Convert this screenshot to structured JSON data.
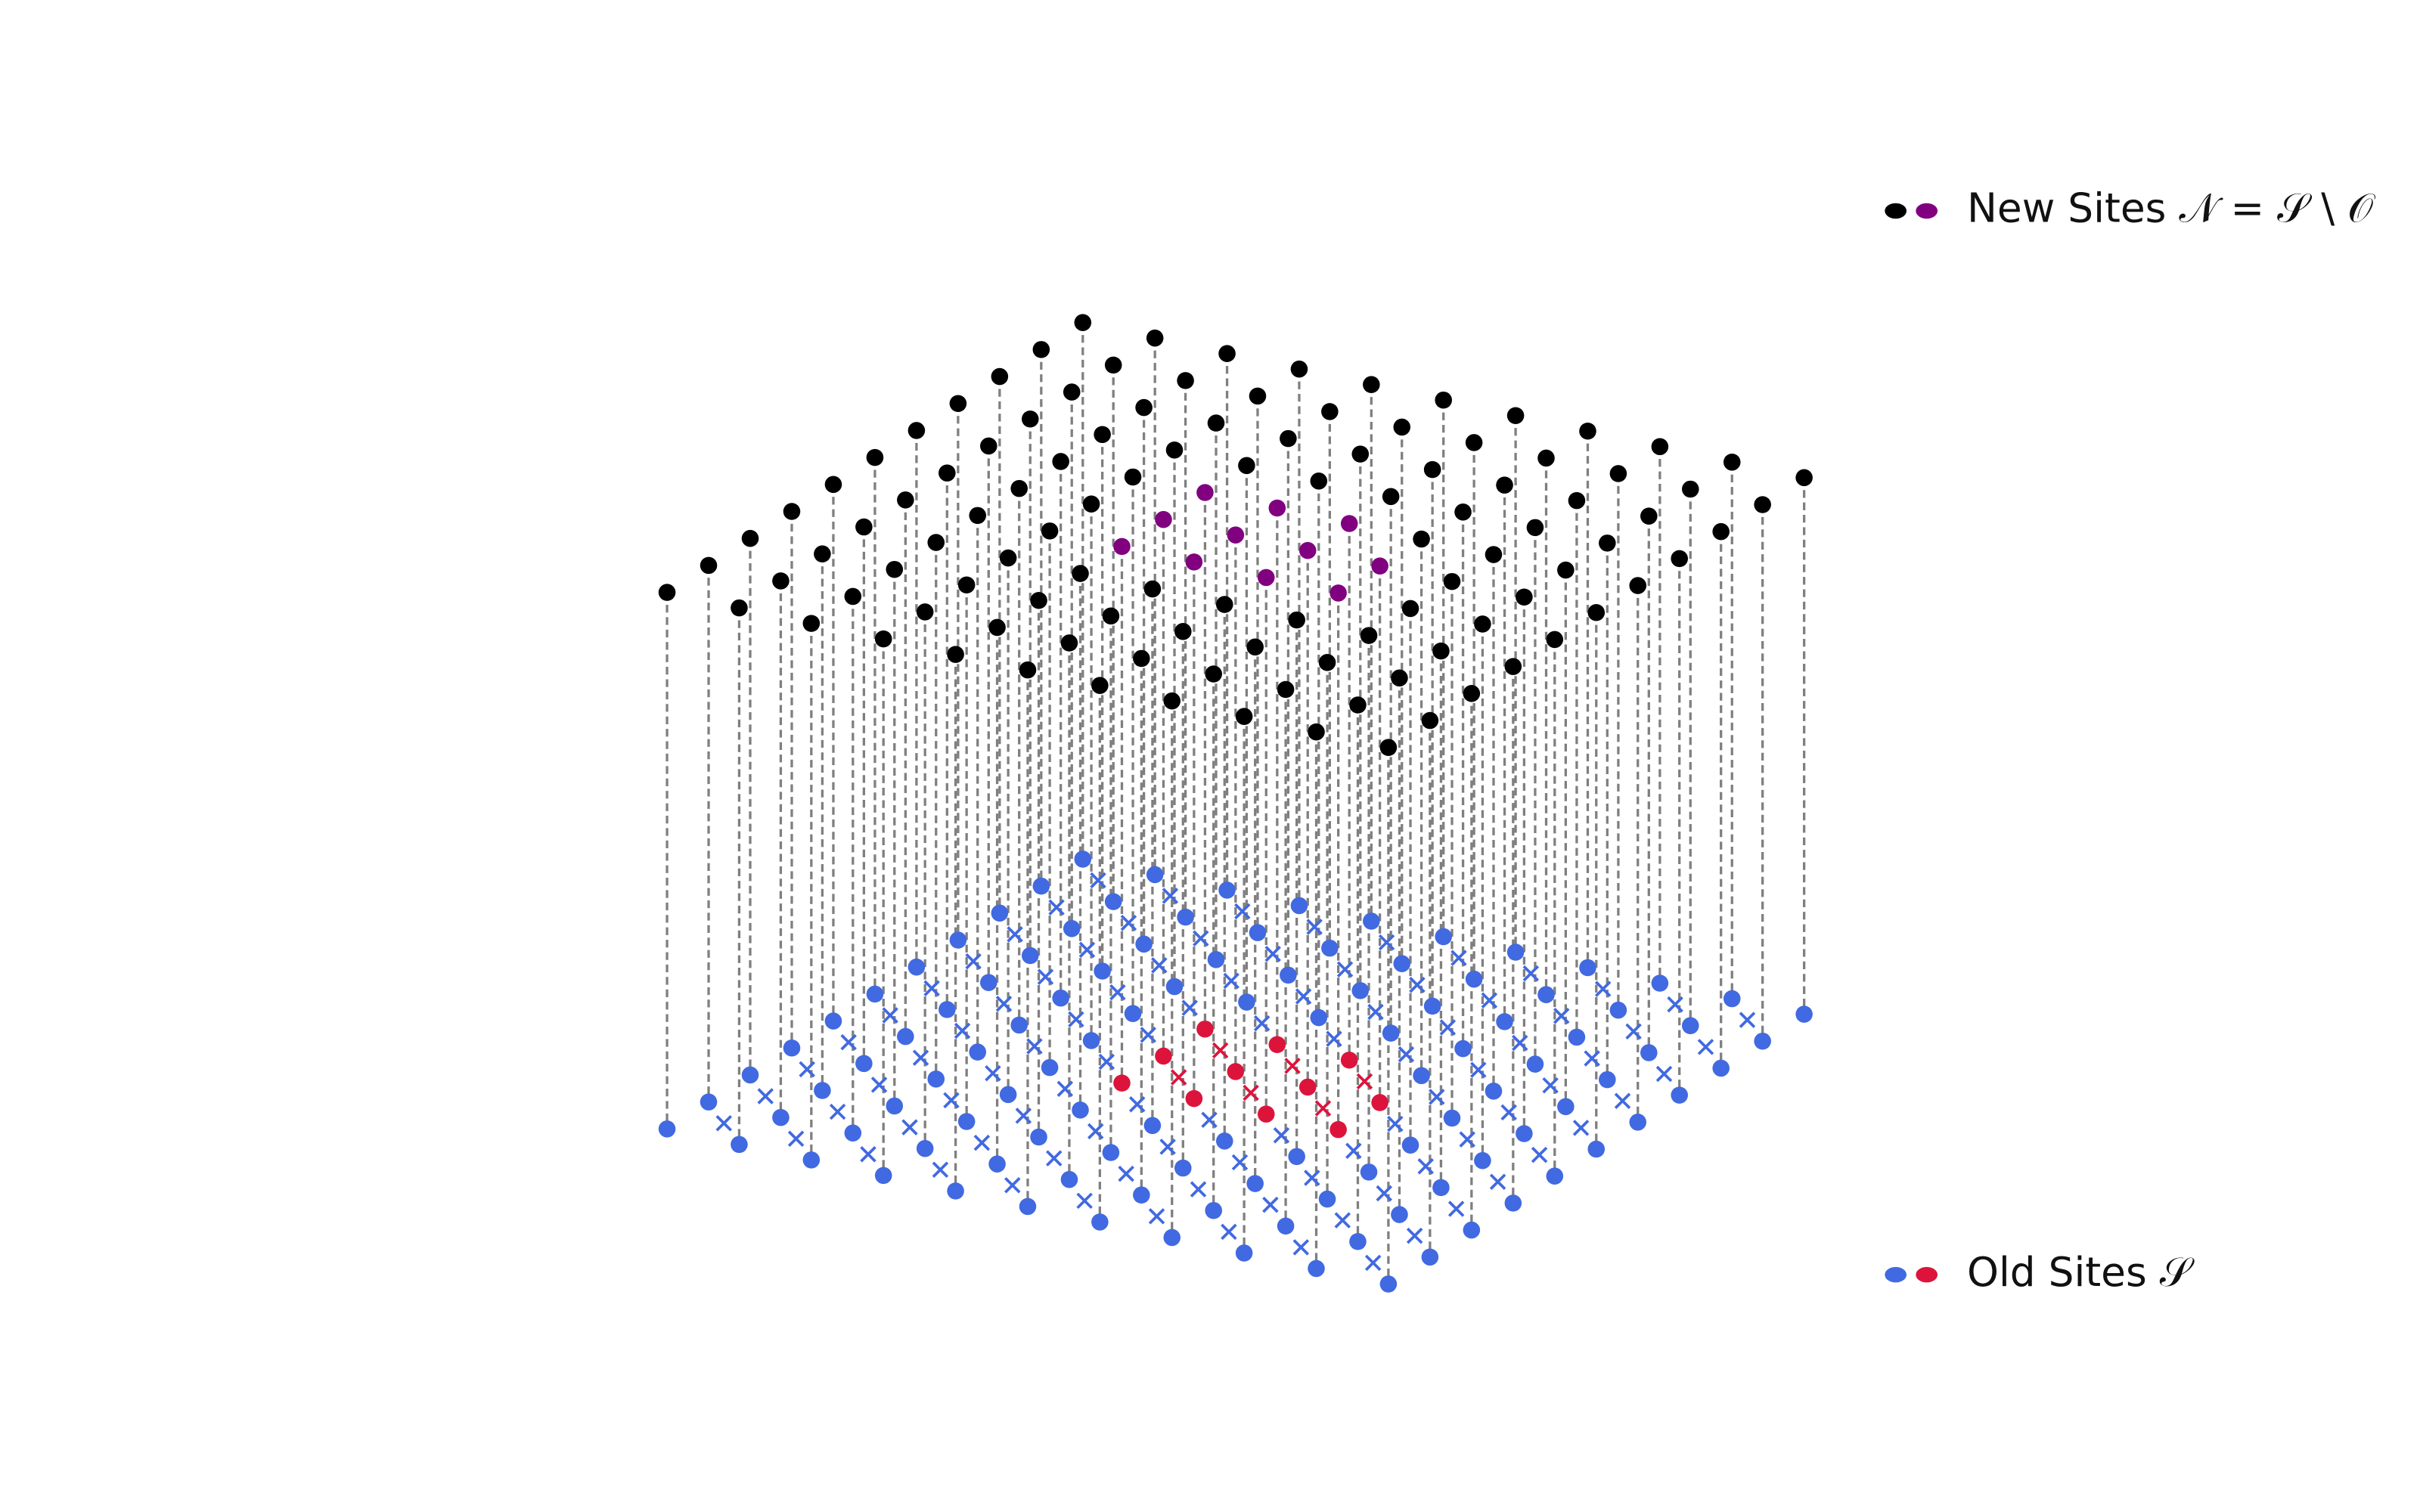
{
  "legend": {
    "items": [
      {
        "label": "New Sites 𝒩 = 𝒮 \\ 𝒪"
      },
      {
        "label": "Old Sites 𝒮"
      }
    ]
  }
}
